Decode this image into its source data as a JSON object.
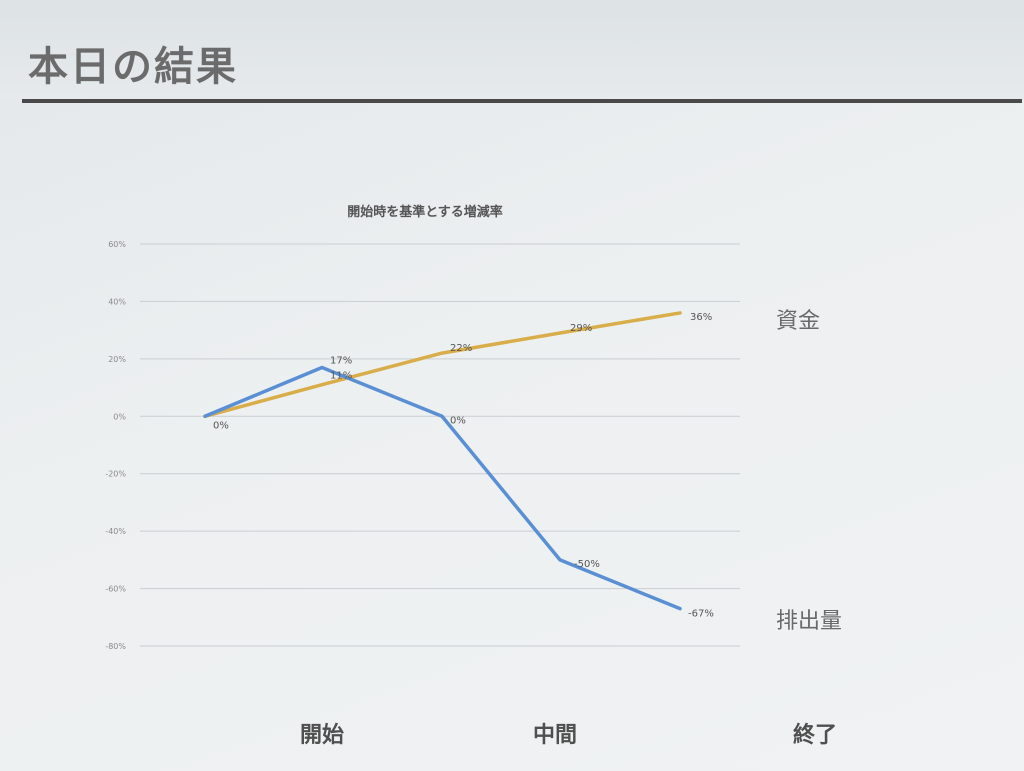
{
  "slide": {
    "title": "本日の結果"
  },
  "chart_data": {
    "type": "line",
    "title": "開始時を基準とする増減率",
    "x": [
      0,
      1,
      2,
      3,
      4
    ],
    "ylim": [
      -80,
      60
    ],
    "yticks": [
      "60%",
      "40%",
      "20%",
      "0%",
      "-20%",
      "-40%",
      "-60%",
      "-80%"
    ],
    "ytick_values": [
      60,
      40,
      20,
      0,
      -20,
      -40,
      -60,
      -80
    ],
    "grid": true,
    "categories_bottom": [
      "開始",
      "中間",
      "終了"
    ],
    "series": [
      {
        "name": "資金",
        "color": "#d9ad4a",
        "values": [
          0,
          11,
          22,
          29,
          36
        ],
        "labels": [
          "0%",
          "11%",
          "22%",
          "29%",
          "36%"
        ]
      },
      {
        "name": "排出量",
        "color": "#5a8fd4",
        "values": [
          0,
          17,
          0,
          -50,
          -67
        ],
        "labels": [
          "",
          "17%",
          "0%",
          "-50%",
          "-67%"
        ]
      }
    ]
  }
}
